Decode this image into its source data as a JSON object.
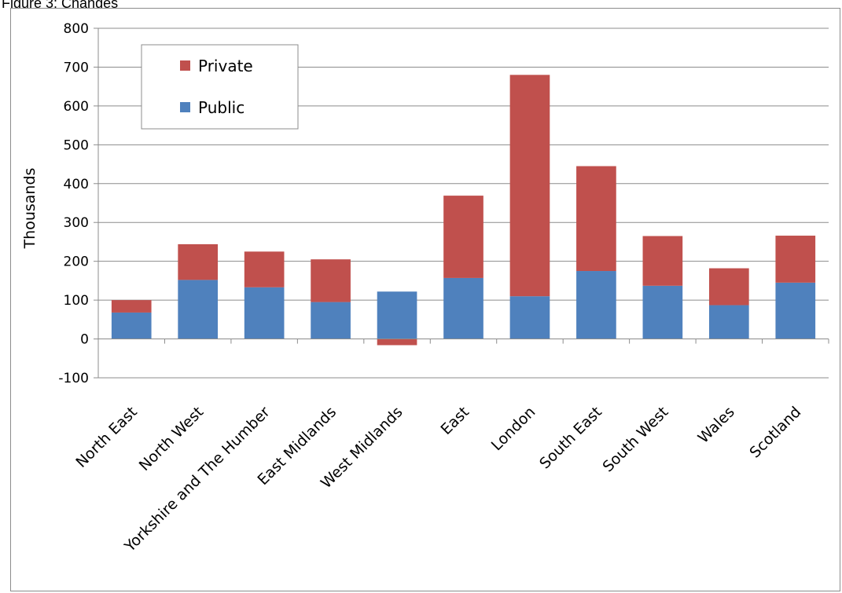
{
  "caption": "Figure 3: Changes",
  "chart_data": {
    "type": "bar",
    "stacked": true,
    "categories": [
      "North East",
      "North West",
      "Yorkshire and The Humber",
      "East Midlands",
      "West Midlands",
      "East",
      "London",
      "South East",
      "South West",
      "Wales",
      "Scotland"
    ],
    "series": [
      {
        "name": "Public",
        "color": "#4f81bd",
        "values": [
          68,
          152,
          133,
          95,
          122,
          157,
          110,
          175,
          137,
          87,
          145
        ]
      },
      {
        "name": "Private",
        "color": "#c0504d",
        "values": [
          32,
          92,
          92,
          110,
          -16,
          212,
          570,
          270,
          128,
          95,
          121
        ]
      }
    ],
    "title": "",
    "xlabel": "",
    "ylabel": "Thousands",
    "ylim": [
      -100,
      800
    ],
    "yticks": [
      -100,
      0,
      100,
      200,
      300,
      400,
      500,
      600,
      700,
      800
    ],
    "grid": true,
    "legend": {
      "position": "top-left",
      "entries": [
        "Private",
        "Public"
      ]
    }
  }
}
